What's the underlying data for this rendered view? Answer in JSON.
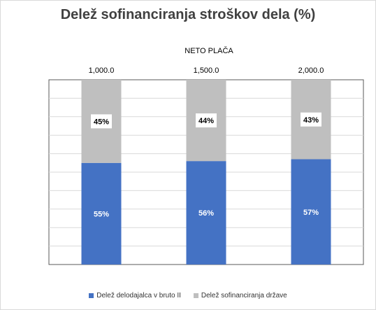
{
  "chart_data": {
    "type": "bar",
    "stacked": true,
    "title": "Delež sofinanciranja stroškov dela (%)",
    "subtitle": "NETO PLAČA",
    "categories": [
      "1,000.0",
      "1,500.0",
      "2,000.0"
    ],
    "series": [
      {
        "name": "Delež delodajalca v bruto II",
        "values": [
          55,
          56,
          57
        ],
        "labels": [
          "55%",
          "56%",
          "57%"
        ],
        "color": "#4472c4"
      },
      {
        "name": "Delež sofinanciranja države",
        "values": [
          45,
          44,
          43
        ],
        "labels": [
          "45%",
          "44%",
          "43%"
        ],
        "color": "#bfbfbf"
      }
    ],
    "ylim": [
      0,
      100
    ],
    "grid": true,
    "legend_position": "bottom"
  }
}
